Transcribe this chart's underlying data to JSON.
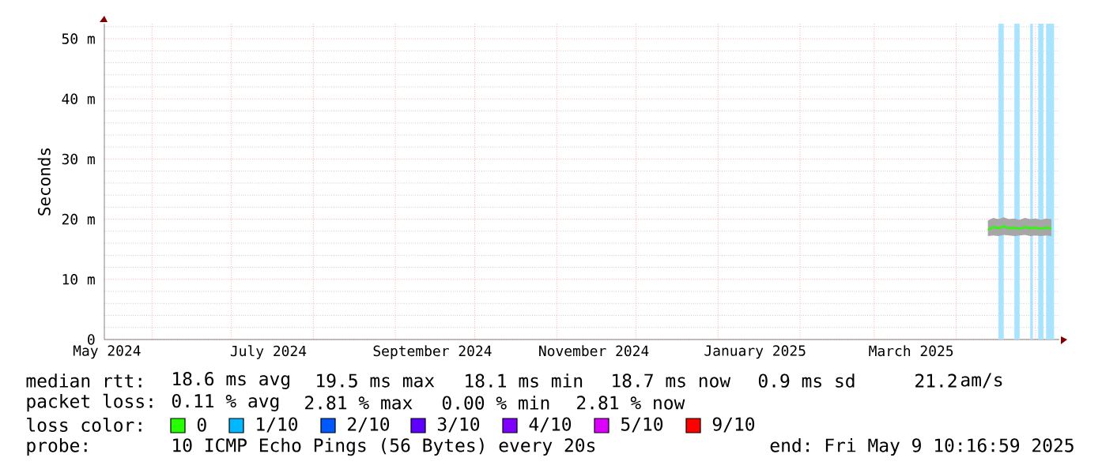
{
  "chart_data": {
    "type": "line",
    "ylabel": "Seconds",
    "x": [
      "2025-04-13",
      "2025-04-15",
      "2025-04-17",
      "2025-04-19",
      "2025-04-21",
      "2025-04-23",
      "2025-04-25",
      "2025-04-27",
      "2025-04-29",
      "2025-05-01",
      "2025-05-03",
      "2025-05-05",
      "2025-05-07"
    ],
    "series": [
      {
        "color": "#26ff00",
        "values": [
          18.2,
          18.7,
          18.5,
          18.8,
          18.5,
          18.6,
          18.4,
          18.7,
          18.5,
          18.6,
          18.4,
          18.6,
          18.5
        ],
        "lower": [
          17.2,
          17.3,
          17.2,
          17.4,
          17.3,
          17.2,
          17.3,
          17.4,
          17.2,
          17.3,
          17.2,
          17.3,
          17.2
        ],
        "upper": [
          19.8,
          20.2,
          20.0,
          20.3,
          20.0,
          20.1,
          19.9,
          20.2,
          20.0,
          20.1,
          19.9,
          20.1,
          20.0
        ]
      }
    ],
    "xlim": [
      "2024-05-14",
      "2025-05-10"
    ],
    "xticks": [
      {
        "value": "2024-05-15",
        "label": "May 2024"
      },
      {
        "value": "2024-06-01",
        "label": null
      },
      {
        "value": "2024-07-01",
        "label": null
      },
      {
        "value": "2024-07-15",
        "label": "July 2024"
      },
      {
        "value": "2024-08-01",
        "label": null
      },
      {
        "value": "2024-09-01",
        "label": null
      },
      {
        "value": "2024-09-15",
        "label": "September 2024"
      },
      {
        "value": "2024-10-01",
        "label": null
      },
      {
        "value": "2024-11-01",
        "label": null
      },
      {
        "value": "2024-11-15",
        "label": "November 2024"
      },
      {
        "value": "2024-12-01",
        "label": null
      },
      {
        "value": "2025-01-01",
        "label": null
      },
      {
        "value": "2025-01-15",
        "label": "January 2025"
      },
      {
        "value": "2025-02-01",
        "label": null
      },
      {
        "value": "2025-03-01",
        "label": null
      },
      {
        "value": "2025-03-15",
        "label": "March 2025"
      },
      {
        "value": "2025-04-01",
        "label": null
      },
      {
        "value": "2025-05-01",
        "label": null
      }
    ],
    "ylim": [
      0,
      52.5
    ],
    "yticks": [
      0,
      {
        "value": 2,
        "label": null
      },
      {
        "value": 4,
        "label": null
      },
      {
        "value": 6,
        "label": null
      },
      {
        "value": 8,
        "label": null
      },
      {
        "value": 10,
        "label": "10 m"
      },
      {
        "value": 12,
        "label": null
      },
      {
        "value": 14,
        "label": null
      },
      {
        "value": 16,
        "label": null
      },
      {
        "value": 18,
        "label": null
      },
      {
        "value": 20,
        "label": "20 m"
      },
      {
        "value": 22,
        "label": null
      },
      {
        "value": 24,
        "label": null
      },
      {
        "value": 26,
        "label": null
      },
      {
        "value": 28,
        "label": null
      },
      {
        "value": 30,
        "label": "30 m"
      },
      {
        "value": 32,
        "label": null
      },
      {
        "value": 34,
        "label": null
      },
      {
        "value": 36,
        "label": null
      },
      {
        "value": 38,
        "label": null
      },
      {
        "value": 40,
        "label": "40 m"
      },
      {
        "value": 42,
        "label": null
      },
      {
        "value": 44,
        "label": null
      },
      {
        "value": 46,
        "label": null
      },
      {
        "value": 48,
        "label": null
      },
      {
        "value": 50,
        "label": "50 m"
      },
      {
        "value": 52,
        "label": null
      }
    ],
    "grid": true,
    "bands": [
      {
        "axis": "x",
        "from": "2025-04-17",
        "to": "2025-04-19",
        "color": "#a8e4ff"
      },
      {
        "axis": "x",
        "from": "2025-04-23",
        "to": "2025-04-25",
        "color": "#a8e4ff"
      },
      {
        "axis": "x",
        "from": "2025-04-29",
        "to": "2025-04-30",
        "color": "#a8e4ff"
      },
      {
        "axis": "x",
        "from": "2025-05-02",
        "to": "2025-05-04",
        "color": "#a8e4ff"
      },
      {
        "axis": "x",
        "from": "2025-05-05",
        "to": "2025-05-08",
        "color": "#a8e4ff"
      }
    ],
    "annotations": [
      "median rtt:",
      "18.6 ms avg",
      "19.5 ms max",
      "18.1 ms min",
      "18.7 ms now",
      "0.9 ms sd",
      "21.2",
      "am/s",
      "packet loss:",
      "0.11 % avg",
      "2.81 % max",
      "0.00 % min",
      "2.81 % now",
      "loss color:",
      "0",
      "1/10",
      "2/10",
      "3/10",
      "4/10",
      "5/10",
      "9/10",
      "probe:",
      "10 ICMP Echo Pings (56 Bytes) every 20s",
      "end: Fri May  9 10:16:59 2025"
    ]
  }
}
